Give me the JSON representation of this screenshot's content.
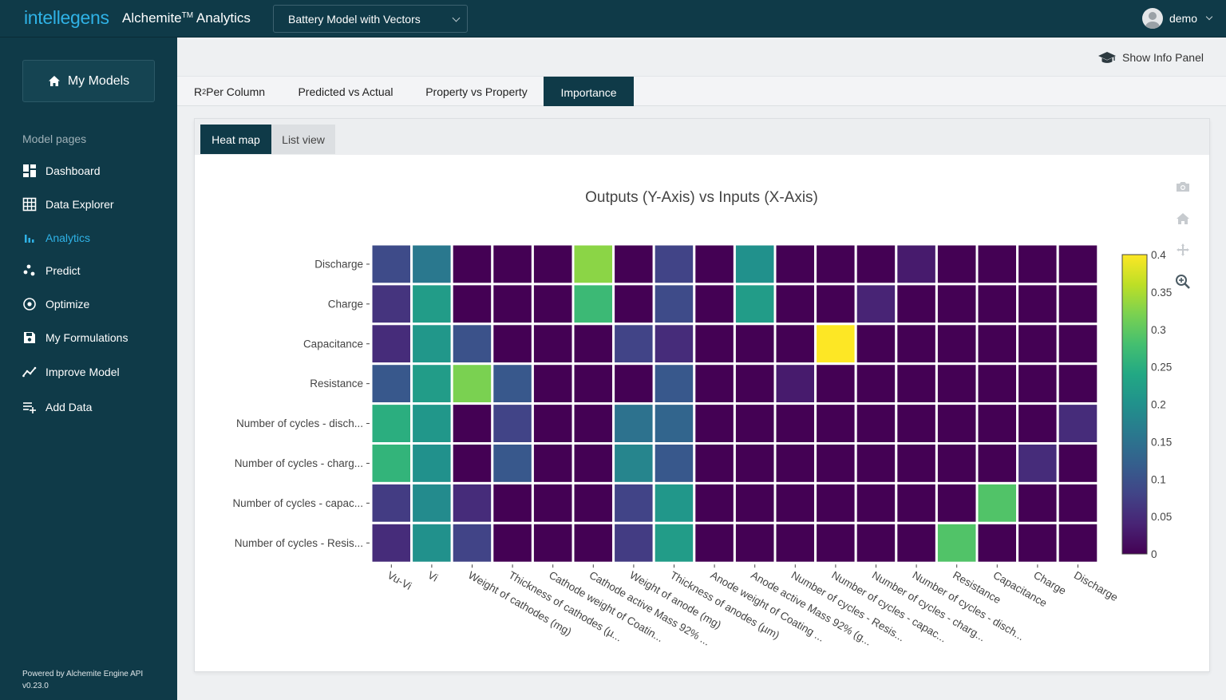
{
  "topbar": {
    "brand": "intellegens",
    "product": "Alchemite",
    "product_tm": "TM",
    "product_suffix": " Analytics",
    "model_selector": "Battery Model with Vectors",
    "user": "demo"
  },
  "sidebar": {
    "my_models": "My Models",
    "section_label": "Model pages",
    "items": [
      {
        "label": "Dashboard",
        "icon": "dashboard-icon"
      },
      {
        "label": "Data Explorer",
        "icon": "table-grid-icon"
      },
      {
        "label": "Analytics",
        "icon": "bar-chart-icon",
        "active": true
      },
      {
        "label": "Predict",
        "icon": "scatter-dots-icon"
      },
      {
        "label": "Optimize",
        "icon": "target-icon"
      },
      {
        "label": "My Formulations",
        "icon": "floppy-disk-icon"
      },
      {
        "label": "Improve Model",
        "icon": "trend-line-icon"
      },
      {
        "label": "Add Data",
        "icon": "add-list-icon"
      }
    ],
    "powered_by": "Powered by Alchemite Engine API",
    "version": "v0.23.0"
  },
  "main": {
    "show_info_panel": "Show Info Panel",
    "tabs": [
      {
        "label_main": "R",
        "label_sup": "2",
        "label_rest": " Per Column"
      },
      {
        "label": "Predicted vs Actual"
      },
      {
        "label": "Property vs Property"
      },
      {
        "label": "Importance",
        "active": true
      }
    ],
    "subtabs": [
      {
        "label": "Heat map",
        "active": true
      },
      {
        "label": "List view"
      }
    ]
  },
  "chart_data": {
    "type": "heatmap",
    "title": "Outputs (Y-Axis) vs Inputs (X-Axis)",
    "x": [
      "Vu-Vi",
      "Vi",
      "Weight of cathodes (mg)",
      "Thickness of cathodes (µ...",
      "Cathode weight of Coatin...",
      "Cathode active Mass 92% ...",
      "Weight of anode (mg)",
      "Thickness of anodes (µm)",
      "Anode weight of Coating ...",
      "Anode active Mass 92% (g...",
      "Number of cycles - Resis...",
      "Number of cycles - capac...",
      "Number of cycles - charg...",
      "Number of cycles - disch...",
      "Resistance",
      "Capacitance",
      "Charge",
      "Discharge"
    ],
    "y": [
      "Discharge",
      "Charge",
      "Capacitance",
      "Resistance",
      "Number of cycles - disch...",
      "Number of cycles - charg...",
      "Number of cycles - capac...",
      "Number of cycles - Resis..."
    ],
    "z": [
      [
        0.09,
        0.16,
        0.0,
        0.0,
        0.0,
        0.33,
        0.0,
        0.08,
        0.0,
        0.2,
        0.0,
        0.0,
        0.0,
        0.03,
        0.0,
        0.0,
        0.0,
        0.0
      ],
      [
        0.06,
        0.22,
        0.0,
        0.0,
        0.0,
        0.27,
        0.0,
        0.09,
        0.0,
        0.22,
        0.0,
        0.0,
        0.04,
        0.0,
        0.0,
        0.0,
        0.0,
        0.0
      ],
      [
        0.05,
        0.21,
        0.1,
        0.0,
        0.0,
        0.0,
        0.08,
        0.05,
        0.0,
        0.0,
        0.0,
        0.4,
        0.0,
        0.0,
        0.0,
        0.0,
        0.0,
        0.0
      ],
      [
        0.11,
        0.22,
        0.32,
        0.11,
        0.0,
        0.0,
        0.0,
        0.11,
        0.0,
        0.0,
        0.03,
        0.0,
        0.0,
        0.0,
        0.0,
        0.0,
        0.0,
        0.0
      ],
      [
        0.25,
        0.21,
        0.0,
        0.08,
        0.0,
        0.0,
        0.15,
        0.13,
        0.0,
        0.0,
        0.0,
        0.0,
        0.0,
        0.0,
        0.0,
        0.0,
        0.0,
        0.05
      ],
      [
        0.26,
        0.2,
        0.0,
        0.11,
        0.0,
        0.0,
        0.18,
        0.11,
        0.0,
        0.0,
        0.0,
        0.0,
        0.0,
        0.0,
        0.0,
        0.0,
        0.05,
        0.0
      ],
      [
        0.07,
        0.19,
        0.05,
        0.0,
        0.0,
        0.0,
        0.08,
        0.21,
        0.0,
        0.0,
        0.0,
        0.0,
        0.0,
        0.0,
        0.0,
        0.29,
        0.0,
        0.0
      ],
      [
        0.05,
        0.2,
        0.08,
        0.0,
        0.0,
        0.0,
        0.07,
        0.22,
        0.0,
        0.0,
        0.0,
        0.0,
        0.0,
        0.0,
        0.29,
        0.0,
        0.0,
        0.0
      ]
    ],
    "zlim": [
      0,
      0.4
    ],
    "colorbar_ticks": [
      "0",
      "0.05",
      "0.1",
      "0.15",
      "0.2",
      "0.25",
      "0.3",
      "0.35",
      "0.4"
    ],
    "colorscale": "viridis",
    "legend": "colorbar-right"
  }
}
